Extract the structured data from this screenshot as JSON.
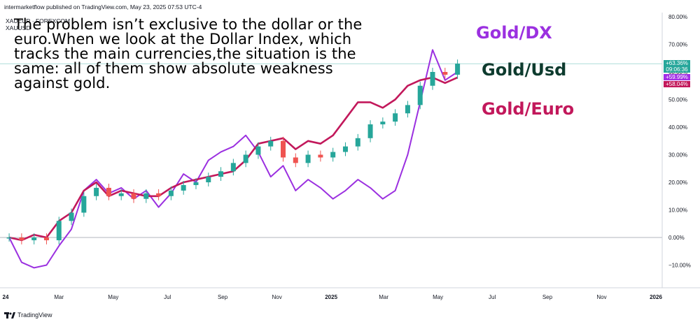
{
  "header": {
    "published": "intermarketflow published on TradingView.com, May 23, 2025 07:53 UTC-4",
    "symbols": [
      "XAUEUR · FOREXCOM",
      "XAUUSD"
    ]
  },
  "annotations": {
    "headline": "The problem isn’t exclusive to the dollar or the euro.When we look at the  Dollar Index, which tracks the main  currencies,the situation is the same: all of them show absolute weakness against gold.",
    "label_dx": "Gold/DX",
    "label_usd": "Gold/Usd",
    "label_euro": "Gold/Euro"
  },
  "colors": {
    "dx": "#9b30e0",
    "usd_up": "#26a69a",
    "usd_down": "#ef5350",
    "euro": "#c2185b",
    "label_usd": "#0d3b2e"
  },
  "price_tags": [
    {
      "text": "+63.36%",
      "bg": "#26a69a"
    },
    {
      "text": "09:06:36",
      "bg": "#26a69a"
    },
    {
      "text": "+59.99%",
      "bg": "#a22ee6"
    },
    {
      "text": "+58.04%",
      "bg": "#c2185b"
    }
  ],
  "footer": {
    "brand": "TradingView"
  },
  "chart_data": {
    "type": "line",
    "y_unit": "percent",
    "ylim": [
      -15,
      80
    ],
    "y_ticks": [
      "80.00%",
      "70.00%",
      "60.00%",
      "50.00%",
      "40.00%",
      "30.00%",
      "20.00%",
      "10.00%",
      "0.00%",
      "−10.00%"
    ],
    "x_ticks": [
      "24",
      "Mar",
      "May",
      "Jul",
      "Sep",
      "Nov",
      "2025",
      "Mar",
      "May",
      "Jul",
      "Sep",
      "Nov",
      "2026"
    ],
    "series": [
      {
        "name": "Gold/DX",
        "kind": "line",
        "x": [
          "2024-01-05",
          "2024-01-19",
          "2024-02-02",
          "2024-02-16",
          "2024-03-01",
          "2024-03-15",
          "2024-03-29",
          "2024-04-12",
          "2024-04-26",
          "2024-05-10",
          "2024-05-24",
          "2024-06-07",
          "2024-06-21",
          "2024-07-05",
          "2024-07-19",
          "2024-08-02",
          "2024-08-16",
          "2024-08-30",
          "2024-09-13",
          "2024-09-27",
          "2024-10-11",
          "2024-10-25",
          "2024-11-08",
          "2024-11-22",
          "2024-12-06",
          "2024-12-20",
          "2025-01-03",
          "2025-01-17",
          "2025-01-31",
          "2025-02-14",
          "2025-02-28",
          "2025-03-14",
          "2025-03-28",
          "2025-04-11",
          "2025-04-25",
          "2025-05-09",
          "2025-05-23"
        ],
        "y": [
          0,
          -9,
          -11,
          -10,
          -3,
          3,
          17,
          21,
          16,
          18,
          14,
          17,
          11,
          16,
          23,
          20,
          28,
          31,
          33,
          37,
          31,
          22,
          26,
          17,
          21,
          18,
          14,
          17,
          21,
          18,
          14,
          17,
          30,
          49,
          68,
          57,
          60
        ]
      },
      {
        "name": "Gold/Euro",
        "kind": "line",
        "x": [
          "2024-01-05",
          "2024-01-19",
          "2024-02-02",
          "2024-02-16",
          "2024-03-01",
          "2024-03-15",
          "2024-03-29",
          "2024-04-12",
          "2024-04-26",
          "2024-05-10",
          "2024-05-24",
          "2024-06-07",
          "2024-06-21",
          "2024-07-05",
          "2024-07-19",
          "2024-08-02",
          "2024-08-16",
          "2024-08-30",
          "2024-09-13",
          "2024-09-27",
          "2024-10-11",
          "2024-10-25",
          "2024-11-08",
          "2024-11-22",
          "2024-12-06",
          "2024-12-20",
          "2025-01-03",
          "2025-01-17",
          "2025-01-31",
          "2025-02-14",
          "2025-02-28",
          "2025-03-14",
          "2025-03-28",
          "2025-04-11",
          "2025-04-25",
          "2025-05-09",
          "2025-05-23"
        ],
        "y": [
          0,
          -1,
          1,
          0,
          6,
          9,
          17,
          20,
          15,
          17,
          16,
          15,
          15,
          18,
          20,
          21,
          22,
          23,
          24,
          28,
          34,
          35,
          36,
          32,
          35,
          34,
          37,
          43,
          49,
          49,
          47,
          50,
          55,
          57,
          58,
          56,
          58
        ]
      },
      {
        "name": "Gold/Usd",
        "kind": "candlestick",
        "x": [
          "2024-01-05",
          "2024-01-19",
          "2024-02-02",
          "2024-02-16",
          "2024-03-01",
          "2024-03-15",
          "2024-03-29",
          "2024-04-12",
          "2024-04-26",
          "2024-05-10",
          "2024-05-24",
          "2024-06-07",
          "2024-06-21",
          "2024-07-05",
          "2024-07-19",
          "2024-08-02",
          "2024-08-16",
          "2024-08-30",
          "2024-09-13",
          "2024-09-27",
          "2024-10-11",
          "2024-10-25",
          "2024-11-08",
          "2024-11-22",
          "2024-12-06",
          "2024-12-20",
          "2025-01-03",
          "2025-01-17",
          "2025-01-31",
          "2025-02-14",
          "2025-02-28",
          "2025-03-14",
          "2025-03-28",
          "2025-04-11",
          "2025-04-25",
          "2025-05-09",
          "2025-05-23"
        ],
        "y": [
          0,
          -1,
          0,
          -1,
          6,
          9,
          15,
          18,
          15,
          16,
          14,
          16,
          15,
          17,
          19,
          20,
          22,
          24,
          27,
          30,
          33,
          35,
          29,
          27,
          30,
          29,
          31,
          33,
          36,
          41,
          42,
          45,
          48,
          55,
          60,
          59,
          63
        ]
      }
    ]
  }
}
